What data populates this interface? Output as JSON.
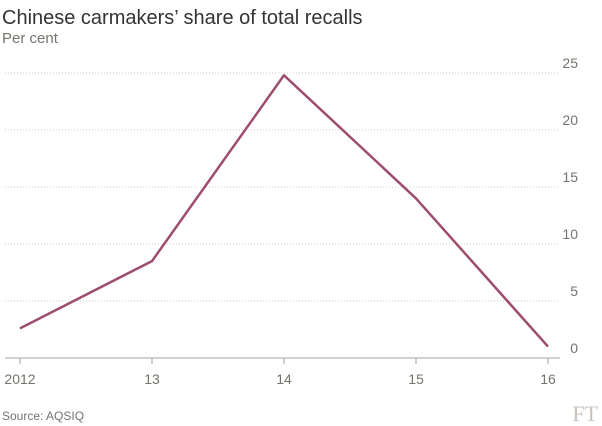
{
  "chart_data": {
    "type": "line",
    "title": "Chinese carmakers’ share of total recalls",
    "subtitle": "Per cent",
    "source": "Source: AQSIQ",
    "logo": "FT",
    "categories": [
      "2012",
      "13",
      "14",
      "15",
      "16"
    ],
    "series": [
      {
        "name": "Chinese carmakers",
        "color": "#9d4d70",
        "values": [
          2.6,
          8.5,
          24.8,
          14,
          1
        ]
      }
    ],
    "ylim": [
      0,
      25
    ],
    "yticks": [
      0,
      5,
      10,
      15,
      20,
      25
    ],
    "grid": true,
    "y_axis_side": "right"
  }
}
